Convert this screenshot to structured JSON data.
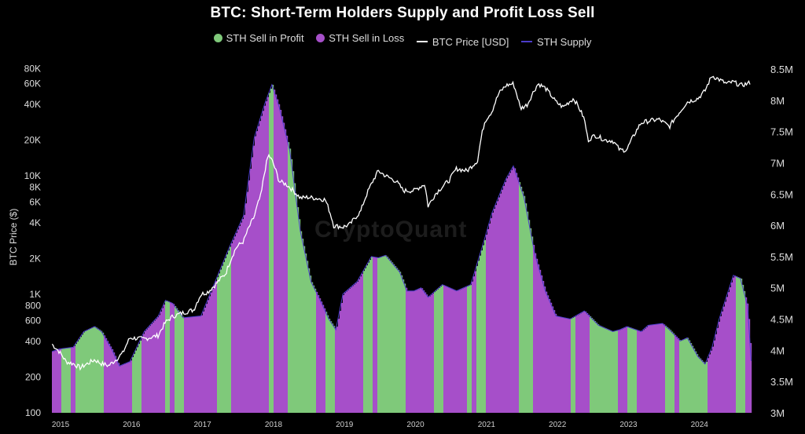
{
  "chart_data": {
    "type": "area",
    "title": "BTC: Short-Term Holders Supply and Profit Loss Sell",
    "watermark": "CryptoQuant",
    "ylabel_left": "BTC Price ($)",
    "ylim_left": [
      100,
      90000
    ],
    "yscale_left": "log",
    "ylim_right": [
      3000000,
      8600000
    ],
    "xlim": [
      2014.9,
      2024.8
    ],
    "left_ticks": [
      {
        "v": 80000,
        "t": "80K"
      },
      {
        "v": 60000,
        "t": "60K"
      },
      {
        "v": 40000,
        "t": "40K"
      },
      {
        "v": 20000,
        "t": "20K"
      },
      {
        "v": 10000,
        "t": "10K"
      },
      {
        "v": 8000,
        "t": "8K"
      },
      {
        "v": 6000,
        "t": "6K"
      },
      {
        "v": 4000,
        "t": "4K"
      },
      {
        "v": 2000,
        "t": "2K"
      },
      {
        "v": 1000,
        "t": "1K"
      },
      {
        "v": 800,
        "t": "800"
      },
      {
        "v": 600,
        "t": "600"
      },
      {
        "v": 400,
        "t": "400"
      },
      {
        "v": 200,
        "t": "200"
      },
      {
        "v": 100,
        "t": "100"
      }
    ],
    "right_ticks": [
      {
        "v": 8500000,
        "t": "8.5M"
      },
      {
        "v": 8000000,
        "t": "8M"
      },
      {
        "v": 7500000,
        "t": "7.5M"
      },
      {
        "v": 7000000,
        "t": "7M"
      },
      {
        "v": 6500000,
        "t": "6.5M"
      },
      {
        "v": 6000000,
        "t": "6M"
      },
      {
        "v": 5500000,
        "t": "5.5M"
      },
      {
        "v": 5000000,
        "t": "5M"
      },
      {
        "v": 4500000,
        "t": "4.5M"
      },
      {
        "v": 4000000,
        "t": "4M"
      },
      {
        "v": 3500000,
        "t": "3.5M"
      },
      {
        "v": 3000000,
        "t": "3M"
      }
    ],
    "x_ticks": [
      {
        "v": 2015.0,
        "t": "2015"
      },
      {
        "v": 2016.0,
        "t": "2016"
      },
      {
        "v": 2017.0,
        "t": "2017"
      },
      {
        "v": 2018.0,
        "t": "2018"
      },
      {
        "v": 2019.0,
        "t": "2019"
      },
      {
        "v": 2020.0,
        "t": "2020"
      },
      {
        "v": 2021.0,
        "t": "2021"
      },
      {
        "v": 2022.0,
        "t": "2022"
      },
      {
        "v": 2023.0,
        "t": "2023"
      },
      {
        "v": 2024.0,
        "t": "2024"
      }
    ],
    "legend": [
      {
        "name": "STH Sell in Profit",
        "kind": "dot",
        "color": "#7fc97a"
      },
      {
        "name": "STH Sell in Loss",
        "kind": "dot",
        "color": "#a64fc9"
      },
      {
        "name": "BTC Price [USD]",
        "kind": "line",
        "color": "#ffffff"
      },
      {
        "name": "STH Supply",
        "kind": "line",
        "color": "#4b3cc9"
      }
    ],
    "sth_supply": {
      "name": "STH Supply",
      "x": [
        2014.9,
        2015.0,
        2015.2,
        2015.35,
        2015.5,
        2015.6,
        2015.75,
        2015.85,
        2016.0,
        2016.2,
        2016.4,
        2016.5,
        2016.6,
        2016.75,
        2017.0,
        2017.2,
        2017.4,
        2017.6,
        2017.75,
        2017.9,
        2018.0,
        2018.1,
        2018.25,
        2018.4,
        2018.55,
        2018.7,
        2018.8,
        2018.9,
        2019.0,
        2019.2,
        2019.4,
        2019.5,
        2019.6,
        2019.8,
        2019.9,
        2020.0,
        2020.1,
        2020.2,
        2020.4,
        2020.6,
        2020.8,
        2021.0,
        2021.1,
        2021.3,
        2021.4,
        2021.55,
        2021.7,
        2021.85,
        2022.0,
        2022.2,
        2022.4,
        2022.6,
        2022.8,
        2022.9,
        2023.0,
        2023.2,
        2023.3,
        2023.5,
        2023.6,
        2023.75,
        2023.85,
        2024.0,
        2024.1,
        2024.2,
        2024.3,
        2024.5,
        2024.6,
        2024.7,
        2024.75
      ],
      "values": [
        3980000,
        4020000,
        4050000,
        4300000,
        4380000,
        4300000,
        4000000,
        3750000,
        3820000,
        4300000,
        4550000,
        4800000,
        4750000,
        4520000,
        4550000,
        5100000,
        5650000,
        6150000,
        7400000,
        7950000,
        8250000,
        7900000,
        7200000,
        5900000,
        5100000,
        4750000,
        4500000,
        4330000,
        4900000,
        5100000,
        5500000,
        5480000,
        5520000,
        5250000,
        4950000,
        4950000,
        5000000,
        4850000,
        5050000,
        4950000,
        5050000,
        5800000,
        6200000,
        6750000,
        6950000,
        6450000,
        5550000,
        4950000,
        4550000,
        4500000,
        4630000,
        4400000,
        4300000,
        4330000,
        4380000,
        4300000,
        4400000,
        4430000,
        4330000,
        4150000,
        4200000,
        3900000,
        3780000,
        4050000,
        4500000,
        5200000,
        5150000,
        4700000,
        3830000
      ]
    },
    "profit_loss_pattern": [
      "loss",
      "loss",
      "profit",
      "profit",
      "loss",
      "profit",
      "profit",
      "profit",
      "profit",
      "profit",
      "profit",
      "loss",
      "loss",
      "loss",
      "loss",
      "loss",
      "loss",
      "profit",
      "profit",
      "loss",
      "loss",
      "loss",
      "loss",
      "loss",
      "profit",
      "loss",
      "profit",
      "profit",
      "loss",
      "loss",
      "loss",
      "loss",
      "loss",
      "loss",
      "loss",
      "profit",
      "profit",
      "profit",
      "loss",
      "loss",
      "loss",
      "loss",
      "loss",
      "loss",
      "loss",
      "loss",
      "profit",
      "loss",
      "loss",
      "loss",
      "profit",
      "profit",
      "profit",
      "profit",
      "profit",
      "profit",
      "loss",
      "loss",
      "profit",
      "profit",
      "loss",
      "loss",
      "loss",
      "loss"
    ],
    "btc_price": {
      "name": "BTC Price [USD]",
      "x": [
        2014.9,
        2015.0,
        2015.1,
        2015.2,
        2015.3,
        2015.5,
        2015.6,
        2015.7,
        2015.8,
        2015.9,
        2016.0,
        2016.2,
        2016.4,
        2016.5,
        2016.6,
        2016.75,
        2016.9,
        2017.0,
        2017.1,
        2017.2,
        2017.35,
        2017.5,
        2017.6,
        2017.75,
        2017.85,
        2017.95,
        2018.0,
        2018.1,
        2018.2,
        2018.3,
        2018.4,
        2018.5,
        2018.6,
        2018.75,
        2018.87,
        2019.0,
        2019.1,
        2019.25,
        2019.4,
        2019.5,
        2019.6,
        2019.75,
        2019.85,
        2020.0,
        2020.15,
        2020.2,
        2020.3,
        2020.5,
        2020.6,
        2020.75,
        2020.9,
        2021.0,
        2021.1,
        2021.2,
        2021.3,
        2021.4,
        2021.5,
        2021.6,
        2021.75,
        2021.85,
        2022.0,
        2022.1,
        2022.25,
        2022.4,
        2022.45,
        2022.55,
        2022.7,
        2022.8,
        2022.9,
        2023.0,
        2023.1,
        2023.2,
        2023.3,
        2023.45,
        2023.6,
        2023.75,
        2023.85,
        2024.0,
        2024.1,
        2024.2,
        2024.3,
        2024.4,
        2024.5,
        2024.6,
        2024.7,
        2024.75
      ],
      "values": [
        380,
        330,
        270,
        260,
        240,
        280,
        260,
        250,
        280,
        320,
        430,
        420,
        450,
        580,
        650,
        700,
        740,
        1000,
        1050,
        1200,
        1500,
        2500,
        2800,
        4500,
        7000,
        15000,
        13500,
        9000,
        8500,
        7500,
        6500,
        6600,
        6500,
        6300,
        3800,
        3700,
        3900,
        5000,
        8500,
        11000,
        10000,
        9000,
        7500,
        7500,
        8500,
        5500,
        7000,
        9200,
        11500,
        11000,
        13500,
        29000,
        35000,
        50000,
        58000,
        60000,
        37000,
        40000,
        60000,
        55000,
        42000,
        38000,
        45000,
        30000,
        20000,
        22000,
        20000,
        19800,
        16500,
        16600,
        22000,
        28000,
        29000,
        30000,
        26000,
        35000,
        42000,
        45000,
        52000,
        70000,
        65000,
        60000,
        62000,
        58000,
        60000,
        62000
      ]
    }
  }
}
